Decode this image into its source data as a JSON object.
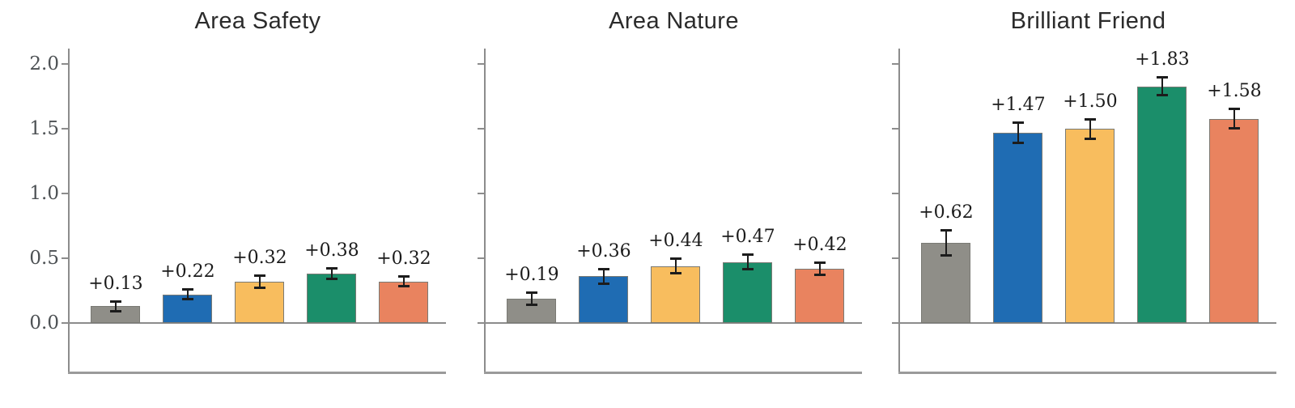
{
  "figure": {
    "background": "#ffffff",
    "palette": [
      "#8f8e88",
      "#1f6cb3",
      "#f8bd5e",
      "#1b8e6a",
      "#e9835f"
    ],
    "palette_names": [
      "gray",
      "blue",
      "yellow",
      "green",
      "salmon"
    ],
    "axis_color": "#8c8c8c",
    "error_bar_color": "#1c1c1c",
    "tick_label_color": "#4d5154",
    "bar_label_color": "#1b1b1b",
    "title_color": "#2b2b2b"
  },
  "chart_data": [
    {
      "type": "bar",
      "title": "Area Safety",
      "values": [
        0.13,
        0.22,
        0.32,
        0.38,
        0.32
      ],
      "bar_labels": [
        "+0.13",
        "+0.22",
        "+0.32",
        "+0.38",
        "+0.32"
      ],
      "errors": [
        0.04,
        0.04,
        0.05,
        0.045,
        0.04
      ],
      "yticks": [
        0.0,
        0.5,
        1.0,
        1.5,
        2.0
      ],
      "ytick_labels": [
        "0.0",
        "0.5",
        "1.0",
        "1.5",
        "2.0"
      ],
      "show_ytick_labels": true,
      "ylim": [
        -0.39,
        2.12
      ],
      "grid": false,
      "legend": false
    },
    {
      "type": "bar",
      "title": "Area Nature",
      "values": [
        0.19,
        0.36,
        0.44,
        0.47,
        0.42
      ],
      "bar_labels": [
        "+0.19",
        "+0.36",
        "+0.44",
        "+0.47",
        "+0.42"
      ],
      "errors": [
        0.05,
        0.06,
        0.06,
        0.06,
        0.05
      ],
      "yticks": [
        0.0,
        0.5,
        1.0,
        1.5,
        2.0
      ],
      "ytick_labels": [
        "0.0",
        "0.5",
        "1.0",
        "1.5",
        "2.0"
      ],
      "show_ytick_labels": false,
      "ylim": [
        -0.39,
        2.12
      ],
      "grid": false,
      "legend": false
    },
    {
      "type": "bar",
      "title": "Brilliant Friend",
      "values": [
        0.62,
        1.47,
        1.5,
        1.83,
        1.58
      ],
      "bar_labels": [
        "+0.62",
        "+1.47",
        "+1.50",
        "+1.83",
        "+1.58"
      ],
      "errors": [
        0.1,
        0.08,
        0.08,
        0.07,
        0.08
      ],
      "yticks": [
        0.0,
        0.5,
        1.0,
        1.5,
        2.0
      ],
      "ytick_labels": [
        "0.0",
        "0.5",
        "1.0",
        "1.5",
        "2.0"
      ],
      "show_ytick_labels": false,
      "ylim": [
        -0.39,
        2.12
      ],
      "grid": false,
      "legend": false
    }
  ]
}
